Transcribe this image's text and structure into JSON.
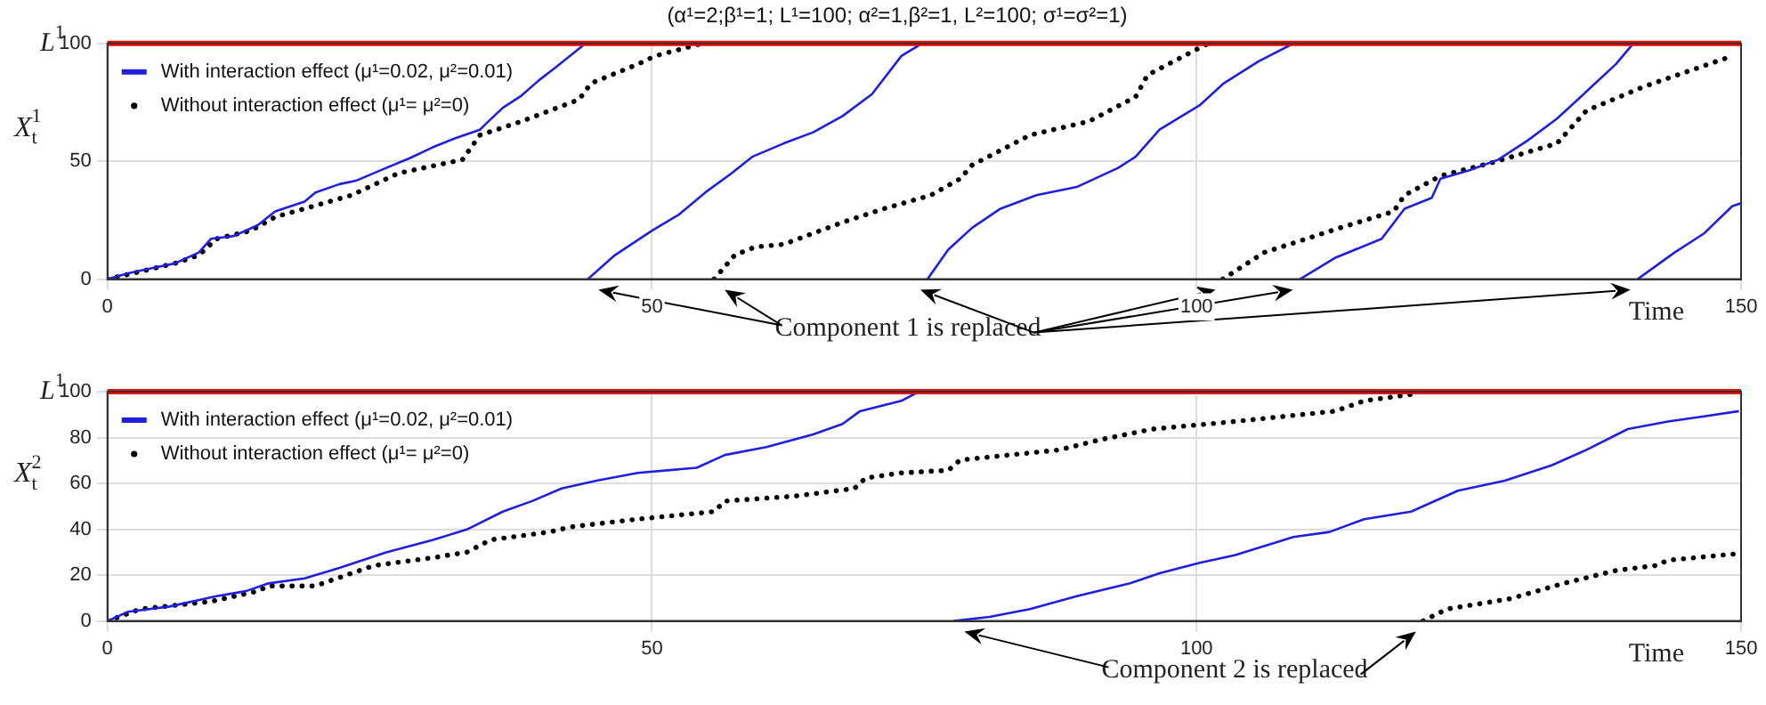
{
  "chart_data": [
    {
      "type": "line",
      "title": "(α¹=2;β¹=1; L¹=100; α²=1,β²=1, L²=100; σ¹=σ²=1)",
      "xlabel": "Time",
      "ylabel": "X$_{t}$$^{1}$",
      "xlim": [
        0,
        150
      ],
      "xticks": [
        0,
        50,
        100,
        150
      ],
      "ylim": [
        0,
        100
      ],
      "yticks": [
        0,
        50,
        100
      ],
      "grid": true,
      "legend": "top left",
      "ref_lines": [
        {
          "axis": "y",
          "value": 100,
          "label": "L$^{1}$",
          "color": "#ff0000"
        }
      ],
      "annotations": [
        "Component 1 is replaced"
      ],
      "series": [
        {
          "name": "With interaction effect (μ¹=0.02, μ²=0.01)",
          "color": "#1f1fdc",
          "line_style": "solid",
          "x": [
            0,
            1.9,
            3.8,
            6.2,
            8.4,
            9.5,
            11.6,
            13.8,
            15.4,
            18.1,
            19.1,
            21.3,
            22.9,
            25.6,
            27.7,
            29.9,
            32.0,
            34.2,
            34.7,
            36.3,
            38.0,
            39.6,
            41.2,
            43.9,
            44.0,
            44.1,
            46.6,
            50.0,
            52.5,
            54.9,
            57.3,
            59.2,
            62.1,
            64.8,
            67.5,
            70.2,
            72.9,
            74.8,
            75.0,
            75.3,
            77.2,
            79.4,
            82.0,
            85.3,
            89.0,
            92.8,
            94.4,
            96.6,
            100.3,
            102.5,
            105.7,
            108.9,
            109.2,
            109.5,
            112.7,
            117.0,
            119.1,
            121.6,
            122.4,
            125.0,
            127.7,
            130.4,
            133.1,
            135.8,
            138.5,
            140.1,
            140.3,
            140.5,
            143.9,
            146.6,
            149.2,
            150
          ],
          "values": [
            0,
            2.5,
            4.4,
            6.7,
            11.3,
            17.1,
            18.3,
            22.9,
            28.7,
            32.9,
            36.8,
            40.3,
            41.9,
            47.2,
            51.2,
            56.0,
            59.9,
            63.4,
            65.7,
            72.7,
            77.8,
            84.3,
            90.0,
            100,
            null,
            0,
            10.2,
            20.6,
            27.5,
            36.8,
            44.9,
            51.9,
            57.6,
            62.3,
            69.2,
            78.5,
            94.7,
            100,
            null,
            0,
            12.5,
            21.8,
            29.9,
            35.6,
            39.1,
            47.2,
            51.9,
            63.4,
            73.8,
            83.1,
            92.4,
            100,
            null,
            0,
            9.0,
            17.1,
            29.9,
            34.5,
            42.6,
            46.1,
            50.7,
            58.8,
            68.1,
            79.6,
            91.2,
            100,
            null,
            0,
            11.3,
            19.4,
            31.0,
            32.2
          ]
        },
        {
          "name": "Without interaction effect (μ¹= μ²=0)",
          "color": "#000000",
          "line_style": "dotted",
          "x": [
            0,
            3.0,
            6.2,
            8.4,
            10.0,
            13.2,
            15.4,
            18.1,
            22.4,
            26.7,
            32.6,
            34.2,
            38.0,
            43.3,
            44.4,
            48.7,
            50.3,
            54.6,
            55.1,
            55.7,
            57.6,
            59.5,
            62.1,
            67.5,
            71.3,
            75.6,
            78.3,
            79.4,
            84.7,
            90.1,
            94.4,
            95.5,
            99.8,
            101.1,
            101.8,
            102.4,
            106.2,
            113.2,
            118.1,
            119.1,
            122.4,
            127.2,
            133.1,
            135.8,
            141.2,
            149.2
          ],
          "values": [
            0,
            3.2,
            6.7,
            10.2,
            17.1,
            20.6,
            26.4,
            29.9,
            35.6,
            44.9,
            50.7,
            61.1,
            66.9,
            76.2,
            83.1,
            91.2,
            94.7,
            100,
            null,
            0,
            10.2,
            13.7,
            14.8,
            24.1,
            29.9,
            35.6,
            42.6,
            48.4,
            61.1,
            66.9,
            77.3,
            86.6,
            97.0,
            100,
            null,
            0,
            11.3,
            21.8,
            28.7,
            35.6,
            43.8,
            49.5,
            57.6,
            71.5,
            81.9,
            94.7
          ]
        }
      ]
    },
    {
      "type": "line",
      "xlabel": "Time",
      "ylabel": "X$_{t}$$^{2}$",
      "xlim": [
        0,
        150
      ],
      "xticks": [
        0,
        50,
        100,
        150
      ],
      "ylim": [
        0,
        100
      ],
      "yticks": [
        0,
        20,
        40,
        60,
        80,
        100
      ],
      "grid": true,
      "legend": "top left",
      "ref_lines": [
        {
          "axis": "y",
          "value": 100,
          "label": "L$^{1}$",
          "color": "#ff0000"
        }
      ],
      "annotations": [
        "Component 2 is replaced"
      ],
      "series": [
        {
          "name": "With interaction effect (μ¹=0.02, μ²=0.01)",
          "color": "#1f1fdc",
          "line_style": "solid",
          "x": [
            0,
            1.9,
            5.7,
            10.0,
            12.7,
            14.8,
            18.1,
            21.3,
            25.6,
            29.9,
            33.0,
            36.3,
            39.0,
            41.7,
            44.9,
            48.7,
            54.1,
            56.7,
            60.5,
            64.8,
            67.5,
            69.1,
            72.9,
            74.5,
            76.0,
            77.7,
            81.0,
            84.7,
            89.0,
            93.9,
            96.6,
            100.3,
            103.5,
            108.9,
            112.2,
            115.4,
            119.7,
            124.0,
            128.3,
            132.6,
            135.8,
            139.6,
            143.3,
            146.6,
            149.8
          ],
          "values": [
            0,
            4.0,
            6.3,
            10.8,
            13.0,
            16.4,
            18.6,
            23.1,
            29.9,
            35.4,
            39.9,
            47.7,
            52.3,
            57.8,
            61.2,
            64.6,
            66.8,
            72.4,
            75.8,
            81.4,
            85.9,
            91.5,
            96.0,
            100,
            null,
            0,
            1.8,
            5.2,
            10.8,
            16.4,
            20.8,
            25.4,
            28.7,
            36.6,
            38.8,
            44.4,
            47.7,
            56.8,
            61.2,
            67.9,
            74.6,
            83.7,
            87.0,
            89.2,
            91.5
          ]
        },
        {
          "name": "Without interaction effect (μ¹= μ²=0)",
          "color": "#000000",
          "line_style": "dotted",
          "x": [
            0,
            3.0,
            9.5,
            13.8,
            14.8,
            19.1,
            21.8,
            24.5,
            29.9,
            33.0,
            35.2,
            40.6,
            42.5,
            48.7,
            55.7,
            56.7,
            63.2,
            68.6,
            69.6,
            72.9,
            77.2,
            78.3,
            87.4,
            91.2,
            96.0,
            103.5,
            112.7,
            115.4,
            119.9,
            120.2,
            120.5,
            120.8,
            123.0,
            128.8,
            133.7,
            138.5,
            142.2,
            143.3,
            149.8
          ],
          "values": [
            0,
            5.2,
            8.5,
            13.0,
            15.3,
            15.3,
            19.8,
            24.2,
            27.6,
            30.0,
            35.4,
            38.8,
            41.0,
            44.4,
            47.7,
            52.3,
            54.5,
            57.8,
            62.3,
            64.6,
            65.7,
            70.2,
            74.6,
            79.1,
            83.7,
            87.0,
            91.5,
            96.0,
            98.9,
            100,
            null,
            0,
            5.2,
            9.7,
            16.4,
            22.0,
            24.2,
            26.5,
            29.4
          ]
        }
      ]
    }
  ]
}
